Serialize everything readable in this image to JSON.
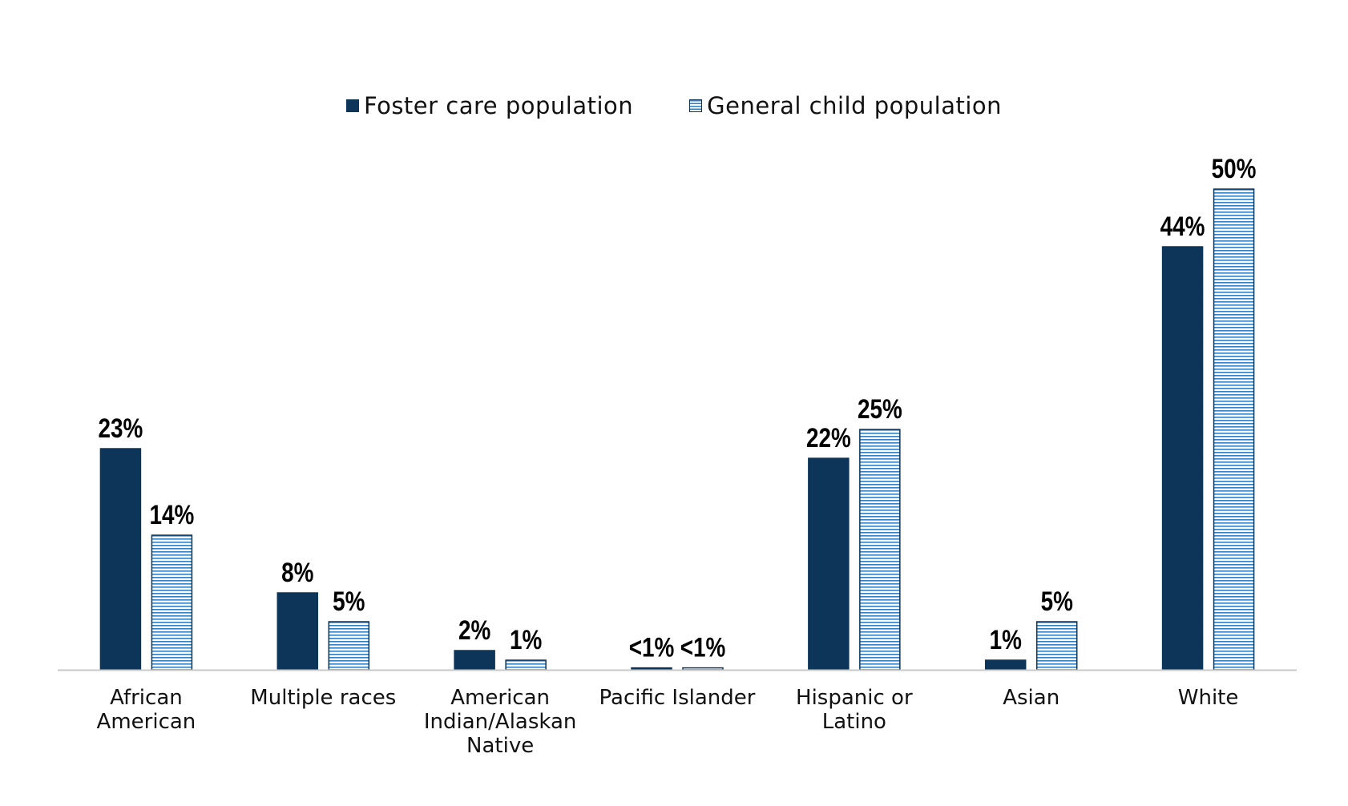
{
  "colors": {
    "foster": "#0d3559",
    "general_stripe": "#2f7fc1",
    "axis": "#c8c8c8"
  },
  "chart_data": {
    "type": "bar",
    "title": "",
    "xlabel": "",
    "ylabel": "",
    "ylim": [
      0,
      55
    ],
    "grid": false,
    "legend_position": "top",
    "categories": [
      "African American",
      "Multiple races",
      "American Indian/Alaskan Native",
      "Pacific Islander",
      "Hispanic or Latino",
      "Asian",
      "White"
    ],
    "category_lines": [
      [
        "African",
        "American"
      ],
      [
        "Multiple races"
      ],
      [
        "American",
        "Indian/Alaskan",
        "Native"
      ],
      [
        "Pacific Islander"
      ],
      [
        "Hispanic or",
        "Latino"
      ],
      [
        "Asian"
      ],
      [
        "White"
      ]
    ],
    "series": [
      {
        "name": "Foster care population",
        "values": [
          23,
          8,
          2,
          0.2,
          22,
          1,
          44
        ],
        "labels": [
          "23%",
          "8%",
          "2%",
          "<1%",
          "22%",
          "1%",
          "44%"
        ],
        "style": "solid"
      },
      {
        "name": "General child population",
        "values": [
          14,
          5,
          1,
          0.2,
          25,
          5,
          50
        ],
        "labels": [
          "14%",
          "5%",
          "1%",
          "<1%",
          "25%",
          "5%",
          "50%"
        ],
        "style": "striped"
      }
    ]
  }
}
